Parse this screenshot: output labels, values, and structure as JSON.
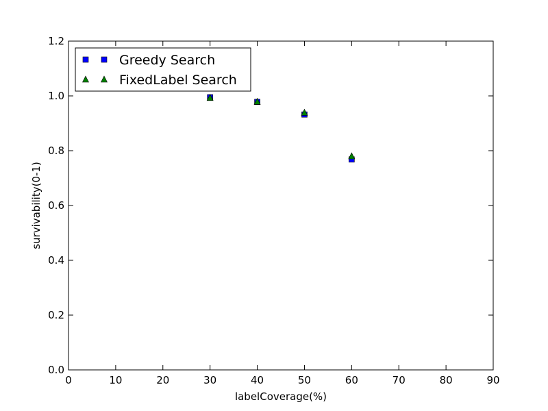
{
  "chart_data": {
    "type": "scatter",
    "xlabel": "labelCoverage(%)",
    "ylabel": "survivability(0-1)",
    "xlim": [
      0,
      90
    ],
    "ylim": [
      0,
      1.2
    ],
    "x_ticks": [
      "0",
      "10",
      "20",
      "30",
      "40",
      "50",
      "60",
      "70",
      "80",
      "90"
    ],
    "y_ticks": [
      "0.0",
      "0.2",
      "0.4",
      "0.6",
      "0.8",
      "1.0",
      "1.2"
    ],
    "grid": false,
    "legend_position": "top-left",
    "series": [
      {
        "name": "Greedy Search",
        "marker": "square",
        "color": "#0000ff",
        "points": [
          {
            "x": 30,
            "y": 0.995
          },
          {
            "x": 40,
            "y": 0.978
          },
          {
            "x": 50,
            "y": 0.932
          },
          {
            "x": 60,
            "y": 0.768
          }
        ]
      },
      {
        "name": "FixedLabel Search",
        "marker": "triangle",
        "color": "#007f00",
        "points": [
          {
            "x": 30,
            "y": 0.993
          },
          {
            "x": 40,
            "y": 0.979
          },
          {
            "x": 50,
            "y": 0.939
          },
          {
            "x": 60,
            "y": 0.78
          }
        ]
      }
    ]
  }
}
